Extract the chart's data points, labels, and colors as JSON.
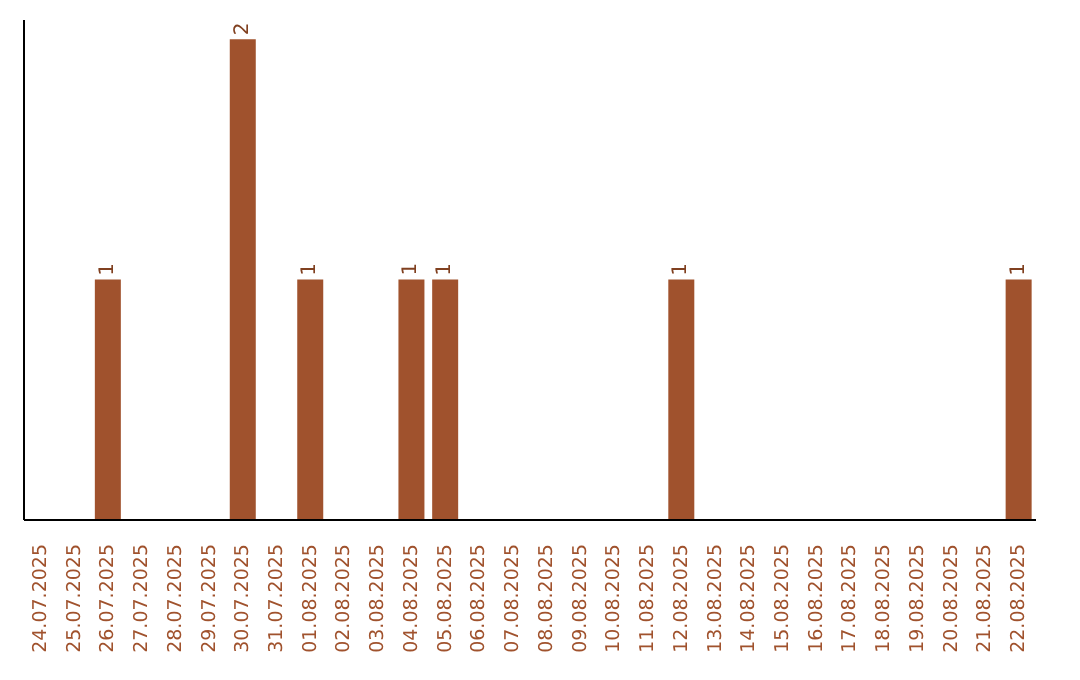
{
  "chart_data": {
    "type": "bar",
    "categories": [
      "24.07.2025",
      "25.07.2025",
      "26.07.2025",
      "27.07.2025",
      "28.07.2025",
      "29.07.2025",
      "30.07.2025",
      "31.07.2025",
      "01.08.2025",
      "02.08.2025",
      "03.08.2025",
      "04.08.2025",
      "05.08.2025",
      "06.08.2025",
      "07.08.2025",
      "08.08.2025",
      "09.08.2025",
      "10.08.2025",
      "11.08.2025",
      "12.08.2025",
      "13.08.2025",
      "14.08.2025",
      "15.08.2025",
      "16.08.2025",
      "17.08.2025",
      "18.08.2025",
      "19.08.2025",
      "20.08.2025",
      "21.08.2025",
      "22.08.2025"
    ],
    "values": [
      0,
      0,
      1,
      0,
      0,
      0,
      2,
      0,
      1,
      0,
      0,
      1,
      1,
      0,
      0,
      0,
      0,
      0,
      0,
      1,
      0,
      0,
      0,
      0,
      0,
      0,
      0,
      0,
      0,
      1
    ],
    "color": "#a0522d",
    "value_labels": [
      null,
      null,
      "1",
      null,
      null,
      null,
      "2",
      null,
      "1",
      null,
      null,
      "1",
      "1",
      null,
      null,
      null,
      null,
      null,
      null,
      "1",
      null,
      null,
      null,
      null,
      null,
      null,
      null,
      null,
      null,
      "1"
    ]
  }
}
